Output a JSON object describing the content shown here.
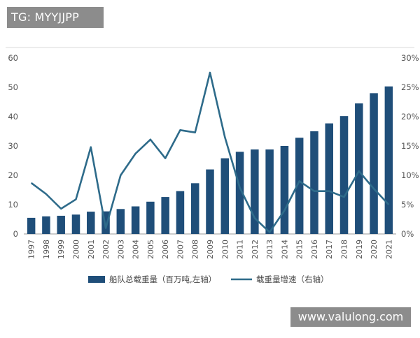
{
  "watermark_top": "TG: MYYJJPP",
  "watermark_bottom": "www.valulong.com",
  "chart_data": {
    "type": "bar",
    "categories": [
      "1997",
      "1998",
      "1999",
      "2000",
      "2001",
      "2002",
      "2003",
      "2004",
      "2005",
      "2006",
      "2007",
      "2008",
      "2009",
      "2010",
      "2011",
      "2012",
      "2013",
      "2014",
      "2015",
      "2016",
      "2017",
      "2018",
      "2019",
      "2020",
      "2021"
    ],
    "series": [
      {
        "name": "船队总载重量（百万吨,左轴）",
        "type": "bar",
        "axis": "left",
        "values": [
          5.5,
          6.0,
          6.2,
          6.6,
          7.6,
          7.7,
          8.5,
          9.4,
          11.0,
          12.6,
          14.6,
          17.3,
          22.0,
          25.8,
          28.0,
          28.8,
          28.8,
          30.0,
          32.8,
          35.0,
          37.7,
          40.2,
          44.5,
          48.0,
          50.3
        ],
        "color": "#1f4e79"
      },
      {
        "name": "载重量增速（右轴）",
        "type": "line",
        "axis": "right",
        "values": [
          8.7,
          6.8,
          4.3,
          5.9,
          14.8,
          1.0,
          10.0,
          13.7,
          16.1,
          12.9,
          17.7,
          17.3,
          27.5,
          16.5,
          7.9,
          2.7,
          0.3,
          4.0,
          9.0,
          7.3,
          7.3,
          6.3,
          10.7,
          7.7,
          5.0
        ],
        "color": "#2e6b8a"
      }
    ],
    "yleft": {
      "ticks": [
        "0",
        "10",
        "20",
        "30",
        "40",
        "50",
        "60"
      ],
      "range": [
        0,
        60
      ]
    },
    "yright": {
      "ticks": [
        "0%",
        "5%",
        "10%",
        "15%",
        "20%",
        "25%",
        "30%"
      ],
      "range": [
        0,
        30
      ]
    },
    "grid": false,
    "legend_position": "bottom"
  }
}
